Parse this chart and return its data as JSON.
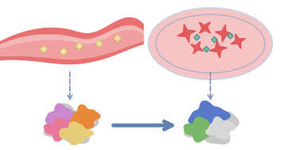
{
  "bg_color": "#ffffff",
  "vessel_color": "#e87070",
  "vessel_inner": "#f0a0a0",
  "vessel_highlight": "#f5c0c0",
  "nano_color": "#f0e0a0",
  "nano_outline": "#c8b860",
  "petri_outer": "#d0d0e0",
  "petri_fill": "#f5c5c5",
  "petri_inner_line": "#b0b0c8",
  "cell_color": "#e05050",
  "arrow_color": "#6080b0",
  "arrow_dash_color": "#8090b8",
  "cluster1_colors": [
    "#cc88cc",
    "#e87830",
    "#e87898",
    "#cccccc",
    "#e8cc78"
  ],
  "cluster2_colors": [
    "#5878c8",
    "#78b868",
    "#c8c8c8"
  ],
  "figsize": [
    3.54,
    1.89
  ],
  "dpi": 100
}
